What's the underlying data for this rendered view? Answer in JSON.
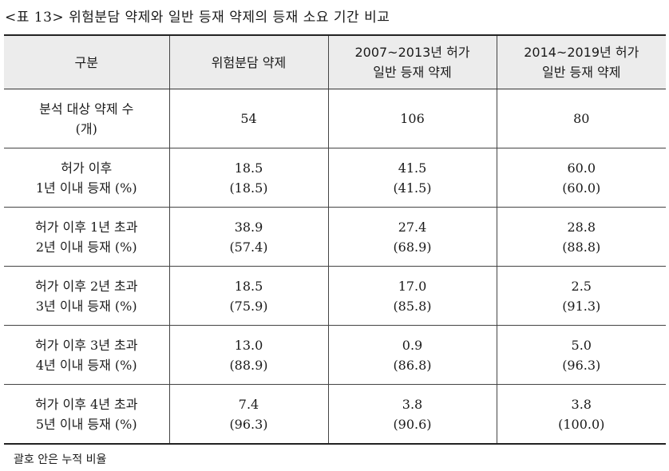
{
  "caption": "<표 13> 위험분담 약제와 일반 등재 약제의 등재 소요 기간 비교",
  "table": {
    "headers": [
      [
        "구분"
      ],
      [
        "위험분담 약제"
      ],
      [
        "2007~2013년 허가",
        "일반 등재 약제"
      ],
      [
        "2014~2019년 허가",
        "일반 등재 약제"
      ]
    ],
    "rows": [
      {
        "label": [
          "분석 대상 약제 수",
          "(개)"
        ],
        "cells": [
          [
            "54"
          ],
          [
            "106"
          ],
          [
            "80"
          ]
        ]
      },
      {
        "label": [
          "허가 이후",
          "1년 이내 등재 (%)"
        ],
        "cells": [
          [
            "18.5",
            "(18.5)"
          ],
          [
            "41.5",
            "(41.5)"
          ],
          [
            "60.0",
            "(60.0)"
          ]
        ]
      },
      {
        "label": [
          "허가 이후 1년 초과",
          "2년 이내 등재 (%)"
        ],
        "cells": [
          [
            "38.9",
            "(57.4)"
          ],
          [
            "27.4",
            "(68.9)"
          ],
          [
            "28.8",
            "(88.8)"
          ]
        ]
      },
      {
        "label": [
          "허가 이후 2년 초과",
          "3년 이내 등재 (%)"
        ],
        "cells": [
          [
            "18.5",
            "(75.9)"
          ],
          [
            "17.0",
            "(85.8)"
          ],
          [
            "2.5",
            "(91.3)"
          ]
        ]
      },
      {
        "label": [
          "허가 이후 3년 초과",
          "4년 이내 등재 (%)"
        ],
        "cells": [
          [
            "13.0",
            "(88.9)"
          ],
          [
            "0.9",
            "(86.8)"
          ],
          [
            "5.0",
            "(96.3)"
          ]
        ]
      },
      {
        "label": [
          "허가 이후 4년 초과",
          "5년 이내 등재 (%)"
        ],
        "cells": [
          [
            "7.4",
            "(96.3)"
          ],
          [
            "3.8",
            "(90.6)"
          ],
          [
            "3.8",
            "(100.0)"
          ]
        ]
      }
    ]
  },
  "footnote": "괄호 안은 누적 비율"
}
